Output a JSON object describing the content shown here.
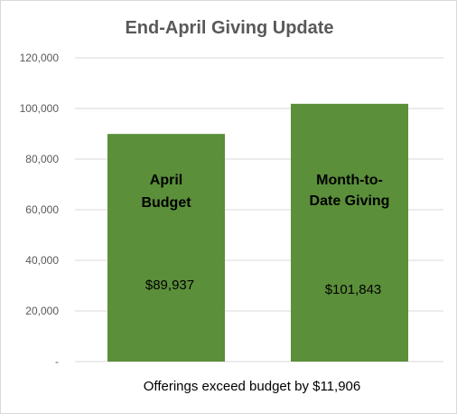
{
  "chart_data": {
    "type": "bar",
    "title": "End-April Giving Update",
    "categories": [
      "April Budget",
      "Month-to-Date Giving"
    ],
    "category_label_lines": [
      [
        "April",
        "Budget"
      ],
      [
        "Month-to-",
        "Date Giving"
      ]
    ],
    "values": [
      89937,
      101843
    ],
    "value_labels": [
      "$89,937",
      "$101,843"
    ],
    "ylim": [
      0,
      120000
    ],
    "y_ticks": [
      0,
      20000,
      40000,
      60000,
      80000,
      100000,
      120000
    ],
    "y_tick_labels": [
      "-",
      "20,000",
      "40,000",
      "60,000",
      "80,000",
      "100,000",
      "120,000"
    ],
    "grid": true,
    "bar_color": "#5b8f3a",
    "caption": "Offerings exceed budget by $11,906"
  }
}
